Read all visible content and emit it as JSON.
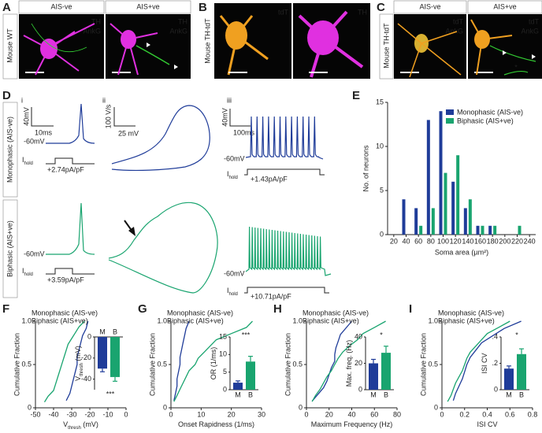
{
  "panel_a": {
    "letter": "A",
    "side_label": "Mouse WT",
    "images": [
      {
        "header": "AIS-ve",
        "labels": [
          "TH",
          "AnkG"
        ]
      },
      {
        "header": "AIS+ve",
        "labels": [
          "TH",
          "AnkG"
        ]
      }
    ]
  },
  "panel_b": {
    "letter": "B",
    "side_label": "Mouse TH-tdT",
    "images": [
      {
        "labels": [
          "tdT"
        ]
      },
      {
        "labels": [
          "TH"
        ]
      }
    ]
  },
  "panel_c": {
    "letter": "C",
    "side_label": "Mouse TH-tdT",
    "images": [
      {
        "header": "AIS-ve",
        "labels": [
          "tdT",
          "AnkG"
        ]
      },
      {
        "header": "AIS+ve",
        "labels": [
          "tdT",
          "AnkG"
        ]
      }
    ],
    "annotation": "*"
  },
  "panel_d": {
    "letter": "D",
    "rows": [
      "Monophasic (AIS-ve)",
      "Biphasic (AIS+ve)"
    ],
    "subpanels": [
      "i",
      "ii",
      "iii"
    ],
    "scale": {
      "i_v": "40mV",
      "i_t": "10ms",
      "ii_v": "100 V/s",
      "ii_h": "25 mV",
      "iii_v": "40mV",
      "iii_t": "100ms"
    },
    "hold": {
      "main": "I",
      "sub": "hold"
    },
    "top": {
      "i_rest": "-60mV",
      "i_step": "+2.74pA/pF",
      "iii_rest": "-60mV",
      "iii_step": "+1.43pA/pF"
    },
    "bottom": {
      "i_rest": "-60mV",
      "i_step": "+3.59pA/pF",
      "iii_rest": "-60mV",
      "iii_step": "+10.71pA/pF"
    }
  },
  "chart_data": [
    {
      "type": "bar",
      "letter": "E",
      "xlabel": "Soma area (µm²)",
      "ylabel": "No. of neurons",
      "x": [
        40,
        60,
        80,
        100,
        120,
        140,
        160,
        180,
        200,
        220
      ],
      "xlim": [
        10,
        250
      ],
      "xticks": [
        20,
        40,
        60,
        80,
        100,
        120,
        140,
        160,
        180,
        200,
        220,
        240
      ],
      "ylim": [
        0,
        15
      ],
      "yticks": [
        0,
        5,
        10,
        15
      ],
      "series": [
        {
          "name": "Monophasic (AIS-ve)",
          "color": "#1f3c99",
          "values": [
            4,
            3,
            13,
            14,
            6,
            3,
            1,
            1,
            null,
            null
          ]
        },
        {
          "name": "Biphasic (AIS+ve)",
          "color": "#19a46f",
          "values": [
            null,
            1,
            3,
            7,
            9,
            4,
            1,
            1,
            null,
            1
          ]
        }
      ]
    },
    {
      "type": "cumulative",
      "letter": "F",
      "ylabel": "Cumulative Fraction",
      "xlabel": {
        "main": "V",
        "sub": "thresh",
        "rest": " (mV)"
      },
      "xlim": [
        -50,
        0
      ],
      "xticks": [
        -50,
        -40,
        -30,
        -20,
        -10,
        0
      ],
      "ylim": [
        0,
        1
      ],
      "yticks": [
        0,
        0.5,
        {
          "value": 1,
          "label": "1.0"
        }
      ],
      "series": [
        {
          "name": "Monophasic (AIS-ve)",
          "color": "#1f3c99",
          "x": [
            -33,
            -31,
            -30,
            -29,
            -28,
            -27,
            -27,
            -26,
            -25,
            -24,
            -22,
            -21
          ]
        },
        {
          "name": "Biphasic (AIS+ve)",
          "color": "#19a46f",
          "x": [
            -45,
            -43,
            -40,
            -39,
            -38,
            -37,
            -36,
            -35,
            -34,
            -33,
            -32,
            -30,
            -28,
            -26,
            -23
          ]
        }
      ],
      "inset": {
        "categories": [
          "M",
          "B"
        ],
        "values": [
          -30,
          -38
        ],
        "errors": [
          3,
          4
        ],
        "ylabel": {
          "main": "V",
          "sub": "thresh",
          "rest": " (mV)"
        },
        "ylim": [
          -50,
          0
        ],
        "yticks": [
          0,
          -20,
          -40
        ],
        "annotation": "***"
      }
    },
    {
      "type": "cumulative",
      "letter": "G",
      "ylabel": "Cumulative Fraction",
      "xlabel": {
        "main": "Onset Rapidness (1/ms)"
      },
      "xlim": [
        0,
        30
      ],
      "xticks": [
        0,
        10,
        20,
        30
      ],
      "ylim": [
        0,
        1
      ],
      "yticks": [
        0,
        0.5,
        {
          "value": 1,
          "label": "1.0"
        }
      ],
      "series": [
        {
          "name": "Monophasic (AIS-ve)",
          "color": "#1f3c99",
          "x": [
            1,
            1.5,
            2,
            2,
            2.5,
            3,
            3,
            3.5,
            4,
            4.5,
            5,
            6
          ]
        },
        {
          "name": "Biphasic (AIS+ve)",
          "color": "#19a46f",
          "x": [
            1,
            2,
            3,
            4,
            5,
            6,
            8,
            9,
            11,
            13,
            15,
            20,
            25,
            27
          ]
        }
      ],
      "inset": {
        "categories": [
          "M",
          "B"
        ],
        "values": [
          2,
          8
        ],
        "errors": [
          0.5,
          1.5
        ],
        "ylabel": {
          "main": "OR (1/ms)"
        },
        "ylim": [
          0,
          15
        ],
        "yticks": [
          0,
          5,
          10,
          15
        ],
        "annotation": "***"
      }
    },
    {
      "type": "cumulative",
      "letter": "H",
      "ylabel": "Cumulative Fraction",
      "xlabel": {
        "main": "Maximum Frequency (Hz)"
      },
      "xlim": [
        0,
        80
      ],
      "xticks": [
        0,
        20,
        40,
        60,
        80
      ],
      "ylim": [
        0,
        1
      ],
      "yticks": [
        0,
        0.5,
        {
          "value": 1,
          "label": "1.0"
        }
      ],
      "series": [
        {
          "name": "Monophasic (AIS-ve)",
          "color": "#1f3c99",
          "x": [
            5,
            10,
            15,
            18,
            20,
            22,
            25,
            25,
            26,
            28,
            30,
            35,
            40
          ]
        },
        {
          "name": "Biphasic (AIS+ve)",
          "color": "#19a46f",
          "x": [
            5,
            8,
            12,
            15,
            18,
            22,
            25,
            28,
            32,
            38,
            45,
            50,
            60,
            70
          ]
        }
      ],
      "inset": {
        "categories": [
          "M",
          "B"
        ],
        "values": [
          20,
          28
        ],
        "errors": [
          3,
          5
        ],
        "ylabel": {
          "main": "Max. freq. (Hz)"
        },
        "ylim": [
          0,
          40
        ],
        "yticks": [
          0,
          20,
          40
        ],
        "annotation": "*"
      }
    },
    {
      "type": "cumulative",
      "letter": "I",
      "ylabel": "Cumulative Fraction",
      "xlabel": {
        "main": "ISI CV"
      },
      "xlim": [
        0,
        0.8
      ],
      "xticks": [
        0,
        0.2,
        0.4,
        0.6,
        0.8
      ],
      "ylim": [
        0,
        1
      ],
      "yticks": [
        0,
        0.5,
        {
          "value": 1,
          "label": "1.0"
        }
      ],
      "series": [
        {
          "name": "Monophasic (AIS-ve)",
          "color": "#1f3c99",
          "x": [
            0.1,
            0.12,
            0.15,
            0.18,
            0.2,
            0.22,
            0.25,
            0.3,
            0.35,
            0.45,
            0.55,
            0.7
          ]
        },
        {
          "name": "Biphasic (AIS+ve)",
          "color": "#19a46f",
          "x": [
            0.05,
            0.08,
            0.1,
            0.12,
            0.15,
            0.18,
            0.2,
            0.22,
            0.25,
            0.3,
            0.35,
            0.4,
            0.5,
            0.6
          ]
        }
      ],
      "inset": {
        "categories": [
          "M",
          "B"
        ],
        "values": [
          0.16,
          0.27
        ],
        "errors": [
          0.02,
          0.04
        ],
        "ylabel": {
          "main": "ISI CV"
        },
        "ylim": [
          0,
          0.4
        ],
        "yticks": [
          0,
          {
            "value": 0.2,
            "label": ".2"
          },
          {
            "value": 0.4,
            "label": ".4"
          }
        ],
        "annotation": "*"
      }
    }
  ]
}
